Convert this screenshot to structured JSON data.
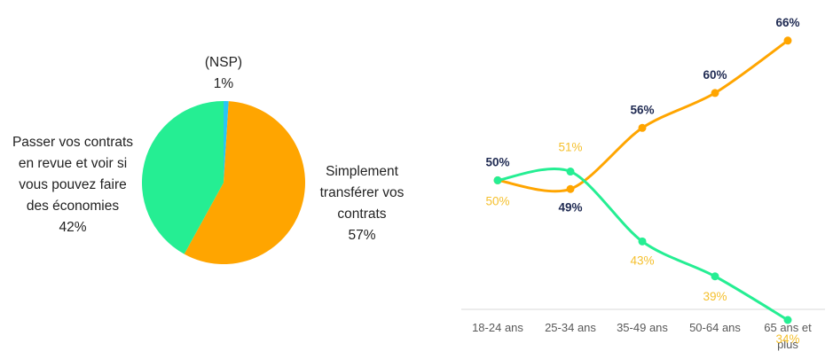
{
  "colors": {
    "orange": "#FFA500",
    "green": "#25EE93",
    "cyan": "#29C5F6",
    "navy": "#1F2A52",
    "yellow_label": "#F5C02E",
    "axis_text": "#595959",
    "axis_line": "#D9D9D9"
  },
  "chart_data": [
    {
      "type": "pie",
      "slices": [
        {
          "label_lines": [
            "(NSP)",
            "1%"
          ],
          "value": 1,
          "color": "#29C5F6"
        },
        {
          "label_lines": [
            "Simplement",
            "transférer vos",
            "contrats",
            "57%"
          ],
          "value": 57,
          "color": "#FFA500"
        },
        {
          "label_lines": [
            "Passer vos contrats",
            "en revue et voir si",
            "vous pouvez faire",
            "des économies",
            "42%"
          ],
          "value": 42,
          "color": "#25EE93"
        }
      ]
    },
    {
      "type": "line",
      "categories": [
        [
          "18-24 ans"
        ],
        [
          "25-34 ans"
        ],
        [
          "35-49 ans"
        ],
        [
          "50-64 ans"
        ],
        [
          "65 ans et",
          "plus"
        ]
      ],
      "ylim": [
        30,
        70
      ],
      "series": [
        {
          "values": [
            50,
            49,
            56,
            60,
            66
          ],
          "labels": [
            "50%",
            "49%",
            "56%",
            "60%",
            "66%"
          ],
          "color": "#FFA500",
          "label_color": "#1F2A52",
          "label_bold": true
        },
        {
          "values": [
            50,
            51,
            43,
            39,
            34
          ],
          "labels": [
            "50%",
            "51%",
            "43%",
            "39%",
            "34%"
          ],
          "color": "#25EE93",
          "label_color": "#F5C02E",
          "label_bold": false
        }
      ]
    }
  ]
}
